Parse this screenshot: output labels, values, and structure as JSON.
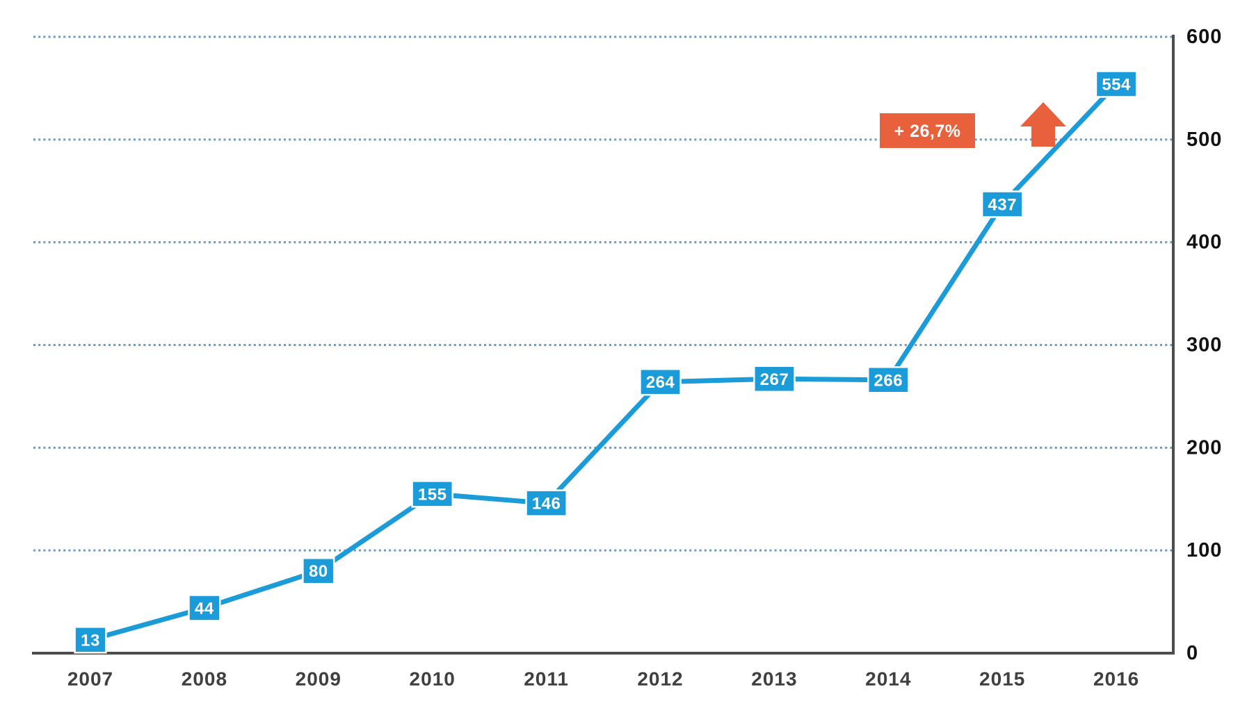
{
  "chart_data": {
    "type": "line",
    "title": "",
    "xlabel": "",
    "ylabel": "",
    "categories": [
      "2007",
      "2008",
      "2009",
      "2010",
      "2011",
      "2012",
      "2013",
      "2014",
      "2015",
      "2016"
    ],
    "series": [
      {
        "name": "annual-value",
        "values": [
          13,
          44,
          80,
          155,
          146,
          264,
          267,
          266,
          437,
          554
        ]
      }
    ],
    "ylim": [
      0,
      600
    ],
    "yticks": [
      0,
      100,
      200,
      300,
      400,
      500,
      600
    ],
    "grid": "horizontal-dotted",
    "legend": "none",
    "annotation": {
      "badge_label": "+ 26,7%",
      "arrow": "up",
      "between_years": [
        "2015",
        "2016"
      ]
    },
    "colors": {
      "line": "#1b9cd8",
      "value_box": "#1b9cd8",
      "value_text": "#ffffff",
      "annotation_orange": "#e8603c",
      "gridline_blue": "#6699cc",
      "axis_gray": "#4d4d4d",
      "ytick_text": "#121212",
      "xtick_text": "#3f3f3f",
      "background": "#ffffff"
    }
  }
}
